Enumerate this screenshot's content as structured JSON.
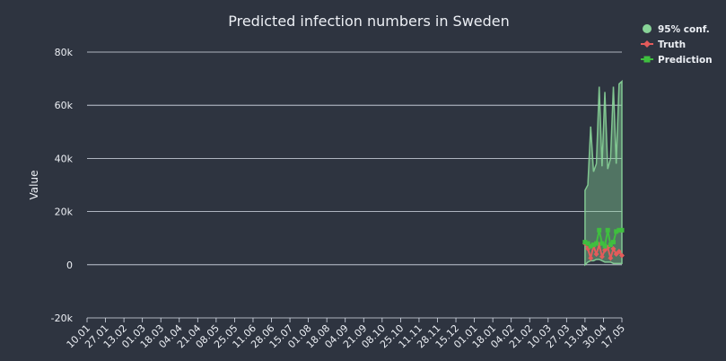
{
  "chart_data": {
    "type": "line",
    "title": "Predicted infection numbers in Sweden",
    "xlabel": "",
    "ylabel": "Value",
    "ylim": [
      -20000,
      80000
    ],
    "y_ticks": [
      "-20k",
      "0",
      "20k",
      "40k",
      "60k",
      "80k"
    ],
    "y_tick_values": [
      -20000,
      0,
      20000,
      40000,
      60000,
      80000
    ],
    "x_tick_labels": [
      "10.01",
      "27.01",
      "13.02",
      "01.03",
      "18.03",
      "04.04",
      "21.04",
      "08.05",
      "25.05",
      "11.06",
      "28.06",
      "15.07",
      "01.08",
      "18.08",
      "04.09",
      "21.09",
      "08.10",
      "25.10",
      "11.11",
      "28.11",
      "15.12",
      "01.01",
      "18.01",
      "04.02",
      "21.02",
      "10.03",
      "27.03",
      "13.04",
      "30.04",
      "17.05"
    ],
    "grid": true,
    "legend_position": "top-right",
    "series": [
      {
        "name": "95% conf.",
        "kind": "band",
        "color": "#88d498",
        "x_range": [
          "13.04",
          "17.05"
        ],
        "lower": [
          0,
          1000,
          1500,
          1500,
          2000,
          2000,
          1500,
          1000,
          1000,
          1000,
          500,
          500,
          500,
          500
        ],
        "upper": [
          28000,
          30000,
          52000,
          35000,
          38000,
          67000,
          37000,
          65000,
          36000,
          40000,
          67000,
          38000,
          68000,
          69000
        ]
      },
      {
        "name": "Truth",
        "kind": "line",
        "color": "#e35b5b",
        "x_range": [
          "13.04",
          "17.05"
        ],
        "values": [
          8000,
          6000,
          2500,
          7000,
          4000,
          7500,
          3000,
          5500,
          6500,
          2500,
          6000,
          4000,
          5000,
          3500
        ]
      },
      {
        "name": "Prediction",
        "kind": "line",
        "color": "#3fbf3f",
        "x_range": [
          "13.04",
          "17.05"
        ],
        "values": [
          8500,
          8000,
          7000,
          7500,
          8000,
          13000,
          8000,
          7000,
          13000,
          7500,
          8500,
          12500,
          13000,
          13000
        ]
      }
    ]
  },
  "legend": {
    "items": [
      {
        "label": "95% conf.",
        "color": "#88d498"
      },
      {
        "label": "Truth",
        "color": "#e35b5b"
      },
      {
        "label": "Prediction",
        "color": "#3fbf3f"
      }
    ]
  },
  "colors": {
    "background": "#2e3440",
    "grid": "#d8dee9",
    "text": "#eceff4"
  }
}
